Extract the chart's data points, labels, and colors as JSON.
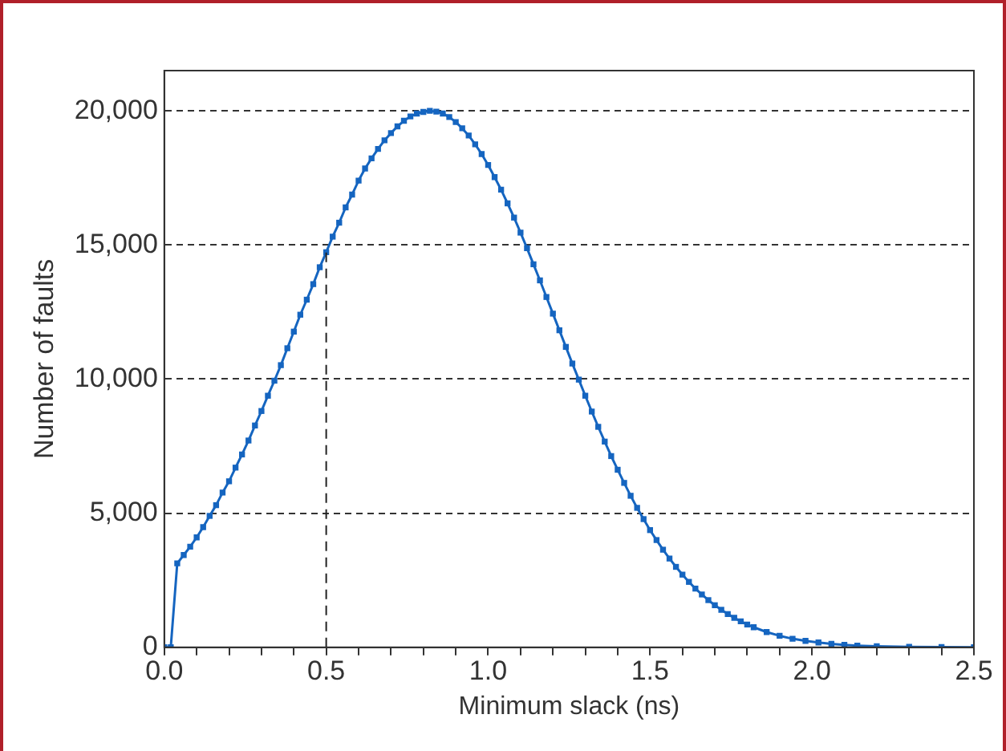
{
  "chart_data": {
    "type": "line",
    "xlabel": "Minimum slack (ns)",
    "ylabel": "Number of faults",
    "x": [
      0,
      0.02,
      0.04,
      0.06,
      0.08,
      0.1,
      0.12,
      0.14,
      0.16,
      0.18,
      0.2,
      0.22,
      0.24,
      0.26,
      0.28,
      0.3,
      0.32,
      0.34,
      0.36,
      0.38,
      0.4,
      0.42,
      0.44,
      0.46,
      0.48,
      0.5,
      0.52,
      0.54,
      0.56,
      0.58,
      0.6,
      0.62,
      0.64,
      0.66,
      0.68,
      0.7,
      0.72,
      0.74,
      0.76,
      0.78,
      0.8,
      0.82,
      0.84,
      0.86,
      0.88,
      0.9,
      0.92,
      0.94,
      0.96,
      0.98,
      1.0,
      1.02,
      1.04,
      1.06,
      1.08,
      1.1,
      1.12,
      1.14,
      1.16,
      1.18,
      1.2,
      1.22,
      1.24,
      1.26,
      1.28,
      1.3,
      1.32,
      1.34,
      1.36,
      1.38,
      1.4,
      1.42,
      1.44,
      1.46,
      1.48,
      1.5,
      1.52,
      1.54,
      1.56,
      1.58,
      1.6,
      1.62,
      1.64,
      1.66,
      1.68,
      1.7,
      1.72,
      1.74,
      1.76,
      1.78,
      1.8,
      1.82,
      1.86,
      1.9,
      1.94,
      1.98,
      2.02,
      2.06,
      2.1,
      2.14,
      2.2,
      2.3,
      2.4,
      2.5
    ],
    "series": [
      {
        "color": "#1565c0",
        "values": [
          0,
          0,
          3130,
          3440,
          3750,
          4100,
          4480,
          4900,
          5300,
          5770,
          6190,
          6700,
          7190,
          7710,
          8270,
          8810,
          9380,
          9940,
          10520,
          11150,
          11770,
          12400,
          12960,
          13540,
          14170,
          14730,
          15310,
          15830,
          16400,
          16880,
          17400,
          17850,
          18230,
          18580,
          18900,
          19170,
          19420,
          19630,
          19790,
          19900,
          19960,
          20000,
          19970,
          19900,
          19770,
          19580,
          19350,
          19080,
          18750,
          18390,
          17980,
          17530,
          17060,
          16550,
          16020,
          15460,
          14880,
          14280,
          13680,
          13060,
          12440,
          11820,
          11200,
          10580,
          9980,
          9380,
          8790,
          8220,
          7670,
          7130,
          6620,
          6130,
          5650,
          5200,
          4780,
          4370,
          4000,
          3640,
          3310,
          3000,
          2710,
          2440,
          2190,
          1970,
          1760,
          1570,
          1400,
          1240,
          1100,
          970,
          850,
          750,
          570,
          430,
          320,
          240,
          180,
          130,
          90,
          65,
          40,
          20,
          10,
          5
        ]
      }
    ],
    "xlim": [
      0,
      2.5
    ],
    "ylim": [
      0,
      21500
    ],
    "xticks": [
      {
        "value": 0,
        "label": "0.0"
      },
      {
        "value": 0.1,
        "label": null
      },
      {
        "value": 0.2,
        "label": null
      },
      {
        "value": 0.3,
        "label": null
      },
      {
        "value": 0.4,
        "label": null
      },
      {
        "value": 0.5,
        "label": "0.5"
      },
      {
        "value": 0.6,
        "label": null
      },
      {
        "value": 0.7,
        "label": null
      },
      {
        "value": 0.8,
        "label": null
      },
      {
        "value": 0.9,
        "label": null
      },
      {
        "value": 1,
        "label": "1.0"
      },
      {
        "value": 1.1,
        "label": null
      },
      {
        "value": 1.2,
        "label": null
      },
      {
        "value": 1.3,
        "label": null
      },
      {
        "value": 1.4,
        "label": null
      },
      {
        "value": 1.5,
        "label": "1.5"
      },
      {
        "value": 1.6,
        "label": null
      },
      {
        "value": 1.7,
        "label": null
      },
      {
        "value": 1.8,
        "label": null
      },
      {
        "value": 1.9,
        "label": null
      },
      {
        "value": 2,
        "label": "2.0"
      },
      {
        "value": 2.1,
        "label": null
      },
      {
        "value": 2.2,
        "label": null
      },
      {
        "value": 2.3,
        "label": null
      },
      {
        "value": 2.4,
        "label": null
      },
      {
        "value": 2.5,
        "label": "2.5"
      }
    ],
    "yticks": [
      0,
      {
        "value": 5000,
        "label": "5,000"
      },
      {
        "value": 10000,
        "label": "10,000"
      },
      {
        "value": 15000,
        "label": "15,000"
      },
      {
        "value": 20000,
        "label": "20,000"
      }
    ],
    "ref_lines": [
      {
        "axis": "x",
        "value": 0.5,
        "line_style": "dashed",
        "color": "#222222"
      }
    ],
    "grid": "y",
    "marker": "square",
    "line_style": "solid",
    "legend": false
  }
}
